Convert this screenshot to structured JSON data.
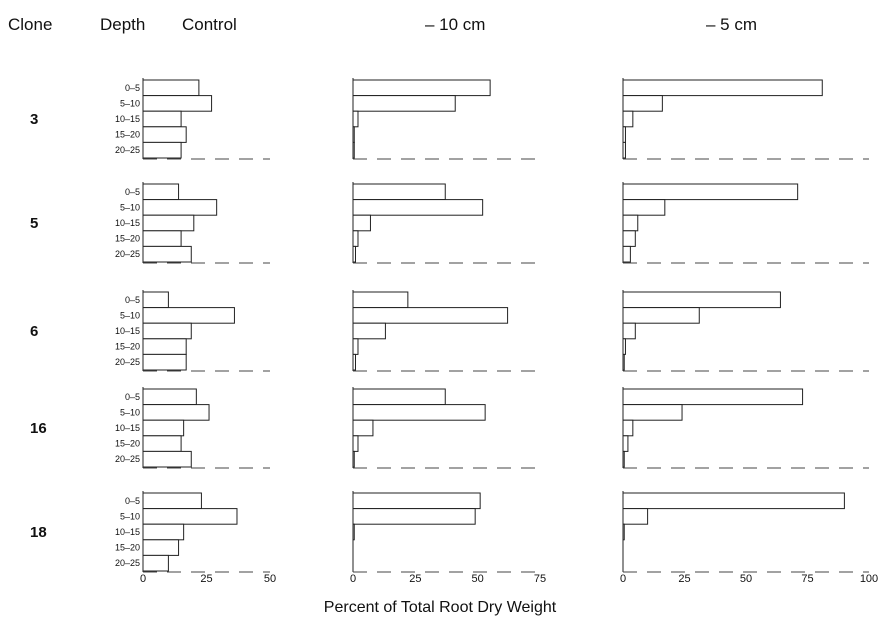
{
  "headers": {
    "clone": "Clone",
    "depth": "Depth",
    "control": "Control",
    "minus10": "– 10 cm",
    "minus5": "– 5 cm"
  },
  "xlabel": "Percent of Total Root Dry Weight",
  "chart_data": {
    "type": "bar",
    "orientation": "horizontal",
    "categories": [
      "0–5",
      "5–10",
      "10–15",
      "15–20",
      "20–25"
    ],
    "clones": [
      "3",
      "5",
      "6",
      "16",
      "18"
    ],
    "panels": [
      {
        "name": "Control",
        "xlim": [
          0,
          50
        ],
        "ticks": [
          0,
          25,
          50
        ],
        "values": {
          "3": [
            22,
            27,
            15,
            17,
            15
          ],
          "5": [
            14,
            29,
            20,
            15,
            19
          ],
          "6": [
            10,
            36,
            19,
            17,
            17
          ],
          "16": [
            21,
            26,
            16,
            15,
            19
          ],
          "18": [
            23,
            37,
            16,
            14,
            10
          ]
        }
      },
      {
        "name": "– 10 cm",
        "xlim": [
          0,
          75
        ],
        "ticks": [
          0,
          25,
          50,
          75
        ],
        "values": {
          "3": [
            55,
            41,
            2,
            0.5,
            0.5
          ],
          "5": [
            37,
            52,
            7,
            2,
            1
          ],
          "6": [
            22,
            62,
            13,
            2,
            1
          ],
          "16": [
            37,
            53,
            8,
            2,
            0.5
          ],
          "18": [
            51,
            49,
            0.5,
            0,
            0
          ]
        }
      },
      {
        "name": "– 5 cm",
        "xlim": [
          0,
          100
        ],
        "ticks": [
          0,
          25,
          50,
          75,
          100
        ],
        "values": {
          "3": [
            81,
            16,
            4,
            1,
            1
          ],
          "5": [
            71,
            17,
            6,
            5,
            3
          ],
          "6": [
            64,
            31,
            5,
            1,
            0.5
          ],
          "16": [
            73,
            24,
            4,
            2,
            0.5
          ],
          "18": [
            90,
            10,
            0.5,
            0,
            0
          ]
        }
      }
    ]
  }
}
